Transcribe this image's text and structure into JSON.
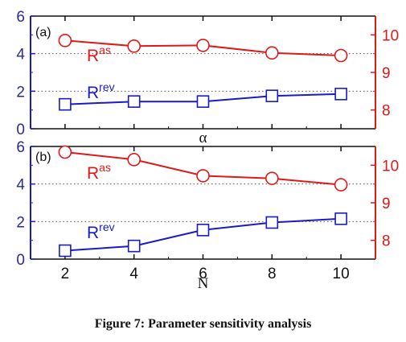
{
  "caption": "Figure 7: Parameter sensitivity analysis",
  "colors": {
    "rev": "#1a1ac8",
    "as": "#e01818",
    "frame": "#111111",
    "grid": "#555555"
  },
  "chart_data": [
    {
      "type": "line",
      "panel": "(a)",
      "xlabel": "α",
      "x": [
        2,
        4,
        6,
        8,
        10
      ],
      "xticks": [],
      "xlim": [
        1,
        11
      ],
      "left_axis": {
        "ylim": [
          0,
          6
        ],
        "ticks": [
          0,
          2,
          4,
          6
        ]
      },
      "right_axis": {
        "ylim": [
          7.5,
          10.5
        ],
        "ticks": [
          8,
          9,
          10
        ]
      },
      "grid": "dotted horizontal at left ticks 2 and 4",
      "series": [
        {
          "name": "R",
          "sup": "rev",
          "axis": "left",
          "marker": "square",
          "color": "#1a1ac8",
          "values": [
            1.3,
            1.45,
            1.45,
            1.75,
            1.85
          ]
        },
        {
          "name": "R",
          "sup": "as",
          "axis": "right",
          "marker": "circle",
          "color": "#e01818",
          "values": [
            9.85,
            9.7,
            9.72,
            9.52,
            9.45
          ]
        }
      ]
    },
    {
      "type": "line",
      "panel": "(b)",
      "xlabel": "N",
      "x": [
        2,
        4,
        6,
        8,
        10
      ],
      "xticks": [
        2,
        4,
        6,
        8,
        10
      ],
      "xlim": [
        1,
        11
      ],
      "left_axis": {
        "ylim": [
          0,
          6
        ],
        "ticks": [
          0,
          2,
          4,
          6
        ]
      },
      "right_axis": {
        "ylim": [
          7.5,
          10.5
        ],
        "ticks": [
          8,
          9,
          10
        ]
      },
      "grid": "dotted horizontal at left ticks 2 and 4",
      "series": [
        {
          "name": "R",
          "sup": "rev",
          "axis": "left",
          "marker": "square",
          "color": "#1a1ac8",
          "values": [
            0.45,
            0.7,
            1.55,
            1.95,
            2.15
          ]
        },
        {
          "name": "R",
          "sup": "as",
          "axis": "right",
          "marker": "circle",
          "color": "#e01818",
          "values": [
            10.35,
            10.15,
            9.72,
            9.65,
            9.48
          ]
        }
      ]
    }
  ]
}
